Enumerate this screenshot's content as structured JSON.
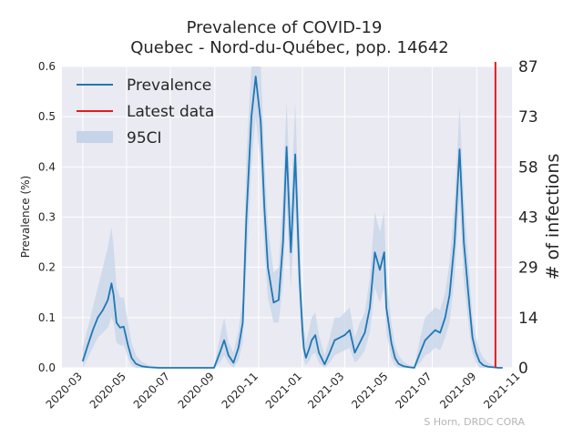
{
  "chart_data": {
    "type": "line",
    "title": "Prevalence of COVID-19",
    "subtitle": "Quebec - Nord-du-Québec, pop. 14642",
    "ylabel": "Prevalence (%)",
    "ylabel_right": "# of infections",
    "ylim": [
      0,
      0.6
    ],
    "xlim": [
      "2020-02-01",
      "2021-10-20"
    ],
    "yticks": [
      "0.0",
      "0.1",
      "0.2",
      "0.3",
      "0.4",
      "0.5",
      "0.6"
    ],
    "yticks_right": [
      "0",
      "14",
      "29",
      "43",
      "58",
      "73",
      "87"
    ],
    "xticks": [
      "2020-03",
      "2020-05",
      "2020-07",
      "2020-09",
      "2020-11",
      "2021-01",
      "2021-03",
      "2021-05",
      "2021-07",
      "2021-09",
      "2021-11"
    ],
    "grid": true,
    "legend_position": "top-left",
    "legend": [
      "Prevalence",
      "Latest data",
      "95CI"
    ],
    "latest_data_date": "2021-09-27",
    "credit": "S Horn, DRDC CORA",
    "colors": {
      "prevalence": "#1f77b4",
      "latest": "#e31a1c",
      "ci": "#c5d4e8",
      "background": "#eaeaf2"
    },
    "series": [
      {
        "name": "Prevalence",
        "x": [
          "2020-03-01",
          "2020-03-08",
          "2020-03-15",
          "2020-03-22",
          "2020-03-29",
          "2020-04-05",
          "2020-04-10",
          "2020-04-13",
          "2020-04-17",
          "2020-04-22",
          "2020-04-27",
          "2020-05-03",
          "2020-05-08",
          "2020-05-14",
          "2020-05-22",
          "2020-06-01",
          "2020-06-15",
          "2020-07-01",
          "2020-08-01",
          "2020-08-31",
          "2020-09-08",
          "2020-09-14",
          "2020-09-20",
          "2020-09-27",
          "2020-10-04",
          "2020-10-10",
          "2020-10-15",
          "2020-10-22",
          "2020-10-28",
          "2020-11-04",
          "2020-11-09",
          "2020-11-14",
          "2020-11-22",
          "2020-11-29",
          "2020-12-05",
          "2020-12-10",
          "2020-12-16",
          "2020-12-22",
          "2020-12-28",
          "2021-01-01",
          "2021-01-03",
          "2021-01-06",
          "2021-01-11",
          "2021-01-14",
          "2021-01-19",
          "2021-01-24",
          "2021-02-01",
          "2021-02-08",
          "2021-02-15",
          "2021-02-22",
          "2021-03-01",
          "2021-03-08",
          "2021-03-15",
          "2021-03-22",
          "2021-03-29",
          "2021-04-05",
          "2021-04-12",
          "2021-04-19",
          "2021-04-25",
          "2021-04-28",
          "2021-05-05",
          "2021-05-10",
          "2021-05-15",
          "2021-05-22",
          "2021-05-30",
          "2021-06-06",
          "2021-06-14",
          "2021-06-21",
          "2021-06-28",
          "2021-07-05",
          "2021-07-12",
          "2021-07-19",
          "2021-07-25",
          "2021-08-01",
          "2021-08-08",
          "2021-08-14",
          "2021-08-22",
          "2021-08-26",
          "2021-08-31",
          "2021-09-05",
          "2021-09-10",
          "2021-09-17",
          "2021-09-24",
          "2021-10-01",
          "2021-10-07"
        ],
        "y": [
          0.013,
          0.045,
          0.075,
          0.1,
          0.115,
          0.135,
          0.168,
          0.145,
          0.09,
          0.08,
          0.082,
          0.045,
          0.02,
          0.008,
          0.003,
          0.001,
          0.0,
          0.0,
          0.0,
          0.0,
          0.03,
          0.055,
          0.025,
          0.01,
          0.04,
          0.09,
          0.3,
          0.5,
          0.58,
          0.49,
          0.32,
          0.2,
          0.13,
          0.135,
          0.25,
          0.44,
          0.23,
          0.425,
          0.18,
          0.08,
          0.04,
          0.02,
          0.04,
          0.055,
          0.065,
          0.03,
          0.007,
          0.03,
          0.055,
          0.06,
          0.065,
          0.075,
          0.03,
          0.05,
          0.07,
          0.12,
          0.23,
          0.195,
          0.23,
          0.12,
          0.05,
          0.02,
          0.008,
          0.003,
          0.001,
          0.0,
          0.03,
          0.055,
          0.065,
          0.075,
          0.07,
          0.1,
          0.145,
          0.25,
          0.435,
          0.25,
          0.12,
          0.06,
          0.03,
          0.012,
          0.005,
          0.002,
          0.001,
          0.0,
          0.0
        ]
      },
      {
        "name": "95CI",
        "x": [
          "2020-03-01",
          "2020-03-08",
          "2020-03-15",
          "2020-03-22",
          "2020-03-29",
          "2020-04-05",
          "2020-04-10",
          "2020-04-13",
          "2020-04-17",
          "2020-04-22",
          "2020-04-27",
          "2020-05-03",
          "2020-05-08",
          "2020-05-14",
          "2020-05-22",
          "2020-06-01",
          "2020-06-15",
          "2020-07-01",
          "2020-08-01",
          "2020-08-31",
          "2020-09-08",
          "2020-09-14",
          "2020-09-20",
          "2020-09-27",
          "2020-10-04",
          "2020-10-10",
          "2020-10-15",
          "2020-10-22",
          "2020-10-28",
          "2020-11-04",
          "2020-11-09",
          "2020-11-14",
          "2020-11-22",
          "2020-11-29",
          "2020-12-05",
          "2020-12-10",
          "2020-12-16",
          "2020-12-22",
          "2020-12-28",
          "2021-01-01",
          "2021-01-03",
          "2021-01-06",
          "2021-01-11",
          "2021-01-14",
          "2021-01-19",
          "2021-01-24",
          "2021-02-01",
          "2021-02-08",
          "2021-02-15",
          "2021-02-22",
          "2021-03-01",
          "2021-03-08",
          "2021-03-15",
          "2021-03-22",
          "2021-03-29",
          "2021-04-05",
          "2021-04-12",
          "2021-04-19",
          "2021-04-25",
          "2021-04-28",
          "2021-05-05",
          "2021-05-10",
          "2021-05-15",
          "2021-05-22",
          "2021-05-30",
          "2021-06-06",
          "2021-06-14",
          "2021-06-21",
          "2021-06-28",
          "2021-07-05",
          "2021-07-12",
          "2021-07-19",
          "2021-07-25",
          "2021-08-01",
          "2021-08-08",
          "2021-08-14",
          "2021-08-22",
          "2021-08-26",
          "2021-08-31",
          "2021-09-05",
          "2021-09-10",
          "2021-09-17",
          "2021-09-24",
          "2021-10-01",
          "2021-10-07"
        ],
        "lower": [
          0.0,
          0.02,
          0.04,
          0.06,
          0.07,
          0.08,
          0.1,
          0.09,
          0.05,
          0.045,
          0.045,
          0.02,
          0.005,
          0.0,
          0.0,
          0.0,
          0.0,
          0.0,
          0.0,
          0.0,
          0.01,
          0.025,
          0.01,
          0.0,
          0.015,
          0.05,
          0.2,
          0.4,
          0.5,
          0.4,
          0.24,
          0.14,
          0.09,
          0.09,
          0.17,
          0.33,
          0.16,
          0.32,
          0.12,
          0.04,
          0.015,
          0.005,
          0.015,
          0.025,
          0.03,
          0.01,
          0.0,
          0.01,
          0.025,
          0.03,
          0.035,
          0.04,
          0.01,
          0.02,
          0.035,
          0.07,
          0.16,
          0.13,
          0.16,
          0.07,
          0.02,
          0.005,
          0.0,
          0.0,
          0.0,
          0.0,
          0.01,
          0.025,
          0.03,
          0.04,
          0.035,
          0.06,
          0.09,
          0.18,
          0.34,
          0.17,
          0.07,
          0.03,
          0.01,
          0.0,
          0.0,
          0.0,
          0.0,
          0.0,
          0.0
        ],
        "upper": [
          0.04,
          0.08,
          0.12,
          0.16,
          0.2,
          0.24,
          0.28,
          0.24,
          0.16,
          0.14,
          0.14,
          0.09,
          0.05,
          0.025,
          0.012,
          0.005,
          0.002,
          0.001,
          0.001,
          0.002,
          0.06,
          0.1,
          0.05,
          0.03,
          0.075,
          0.14,
          0.42,
          0.6,
          0.6,
          0.6,
          0.42,
          0.28,
          0.19,
          0.2,
          0.35,
          0.53,
          0.32,
          0.53,
          0.26,
          0.13,
          0.08,
          0.05,
          0.08,
          0.1,
          0.11,
          0.065,
          0.025,
          0.06,
          0.1,
          0.1,
          0.11,
          0.12,
          0.06,
          0.09,
          0.11,
          0.18,
          0.31,
          0.27,
          0.31,
          0.18,
          0.09,
          0.045,
          0.025,
          0.012,
          0.005,
          0.003,
          0.06,
          0.1,
          0.11,
          0.12,
          0.115,
          0.15,
          0.21,
          0.33,
          0.52,
          0.34,
          0.18,
          0.1,
          0.06,
          0.035,
          0.02,
          0.01,
          0.005,
          0.002,
          0.001
        ]
      }
    ]
  }
}
